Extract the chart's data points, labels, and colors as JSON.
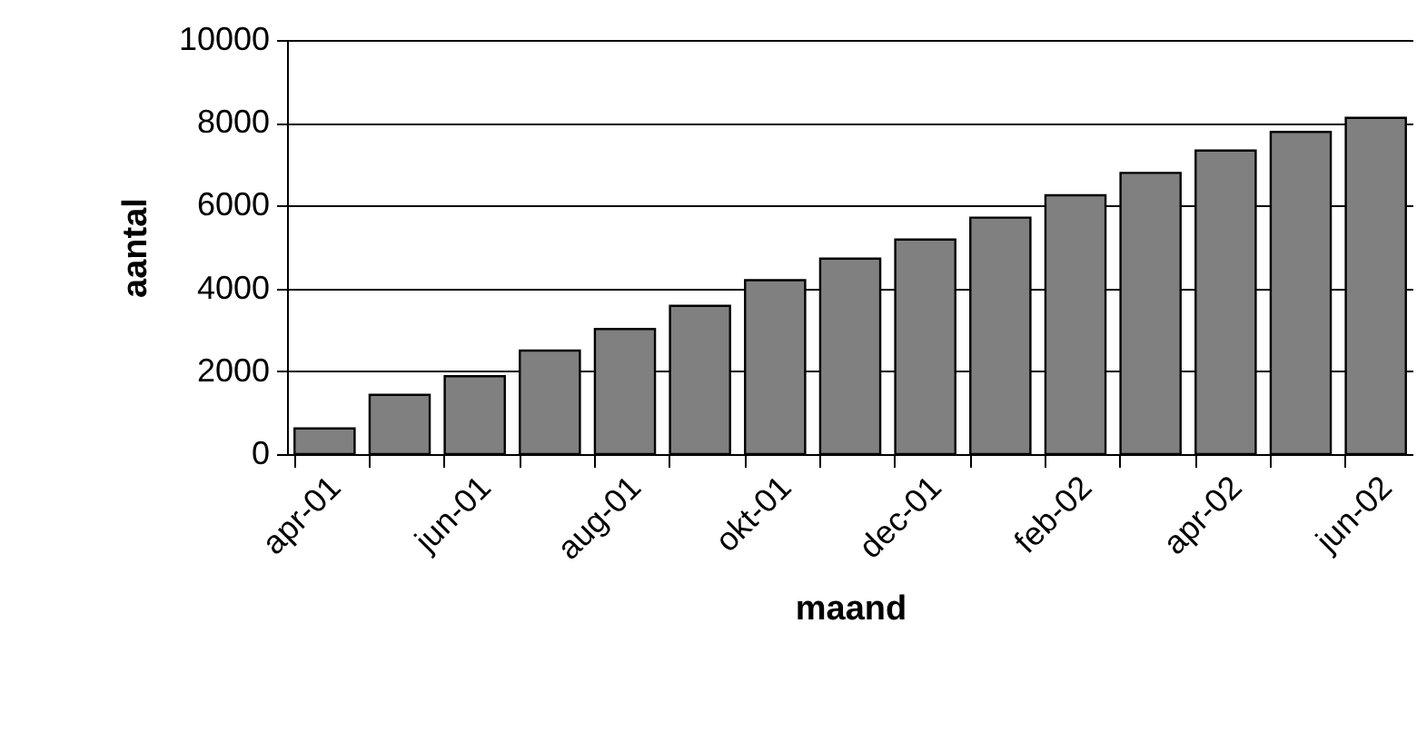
{
  "chart_data": {
    "type": "bar",
    "xlabel": "maand",
    "ylabel": "aantal",
    "categories": [
      "apr-01",
      null,
      "jun-01",
      null,
      "aug-01",
      null,
      "okt-01",
      null,
      "dec-01",
      null,
      "feb-02",
      null,
      "apr-02",
      null,
      "jun-02"
    ],
    "values": [
      620,
      1430,
      1880,
      2500,
      3020,
      3580,
      4200,
      4720,
      5180,
      5710,
      6250,
      6790,
      7330,
      7780,
      8120
    ],
    "color": "#808080",
    "ylim": [
      0,
      10000
    ],
    "yticks": [
      0,
      2000,
      4000,
      6000,
      8000,
      10000
    ],
    "grid": "y"
  }
}
